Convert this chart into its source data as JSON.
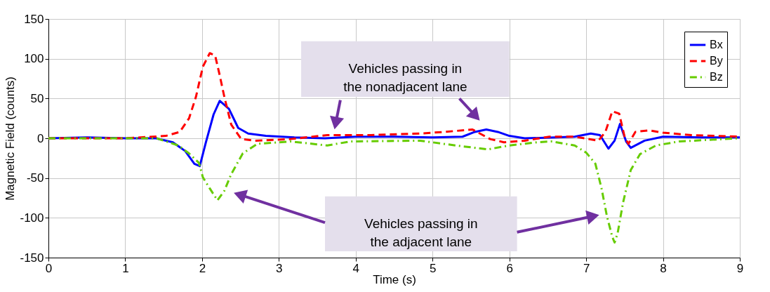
{
  "chart_data": {
    "type": "line",
    "xlabel": "Time (s)",
    "ylabel": "Magnetic Field (counts)",
    "xlim": [
      0,
      9
    ],
    "xticks": [
      0,
      1,
      2,
      3,
      4,
      5,
      6,
      7,
      8,
      9
    ],
    "ylim": [
      -150,
      150
    ],
    "yticks": [
      -150,
      -100,
      -50,
      0,
      50,
      100,
      150
    ],
    "grid": true,
    "legend": "top right",
    "marker": "none",
    "annotations": [
      "Vehicles passing in\nthe nonadjacent lane",
      "Vehicles passing in\nthe adjacent lane"
    ],
    "series": [
      {
        "name": "Bx",
        "color": "#0000ff",
        "line_style": "solid",
        "x": [
          0,
          0.5,
          1.0,
          1.4,
          1.62,
          1.78,
          1.9,
          1.97,
          2.05,
          2.15,
          2.23,
          2.35,
          2.47,
          2.6,
          2.83,
          3.2,
          3.6,
          4.0,
          4.5,
          5.0,
          5.39,
          5.55,
          5.7,
          5.85,
          6.0,
          6.2,
          6.6,
          6.85,
          7.06,
          7.18,
          7.29,
          7.37,
          7.44,
          7.52,
          7.58,
          7.76,
          8.0,
          8.5,
          9.0
        ],
        "values": [
          0,
          1,
          0,
          0,
          -5,
          -16,
          -32,
          -35,
          -5,
          30,
          47,
          37,
          13,
          6,
          3,
          1,
          0,
          2,
          2,
          1,
          2,
          8,
          11,
          8,
          3,
          0,
          1,
          2,
          6,
          4,
          -13,
          -3,
          18,
          -4,
          -12,
          -3,
          2,
          1,
          1
        ]
      },
      {
        "name": "By",
        "color": "#ff0000",
        "line_style": "dashed",
        "x": [
          0,
          0.5,
          1.0,
          1.53,
          1.71,
          1.83,
          1.92,
          2.01,
          2.1,
          2.17,
          2.23,
          2.29,
          2.38,
          2.51,
          2.69,
          3.15,
          3.63,
          4.2,
          4.84,
          5.15,
          5.52,
          5.75,
          5.93,
          6.2,
          6.52,
          6.85,
          7.16,
          7.25,
          7.34,
          7.43,
          7.5,
          7.55,
          7.64,
          7.82,
          8.0,
          8.37,
          9.0
        ],
        "values": [
          0,
          0,
          0,
          3,
          8,
          25,
          52,
          90,
          107,
          104,
          79,
          52,
          17,
          -1,
          -3,
          -1,
          4,
          4,
          6,
          8,
          11,
          -1,
          -5,
          -3,
          2,
          2,
          -3,
          8,
          34,
          31,
          2,
          -7,
          8,
          10,
          7,
          4,
          2
        ]
      },
      {
        "name": "Bz",
        "color": "#66cc00",
        "line_style": "dashdot",
        "x": [
          0,
          0.5,
          1.0,
          1.41,
          1.69,
          1.83,
          1.96,
          2.01,
          2.1,
          2.2,
          2.29,
          2.38,
          2.53,
          2.72,
          3.15,
          3.63,
          3.93,
          4.84,
          5.3,
          5.72,
          6.0,
          6.36,
          6.55,
          6.85,
          7.0,
          7.12,
          7.2,
          7.27,
          7.34,
          7.37,
          7.41,
          7.48,
          7.58,
          7.7,
          7.91,
          8.21,
          8.6,
          8.98
        ],
        "values": [
          0,
          0,
          0,
          0,
          -9,
          -19,
          -31,
          -49,
          -63,
          -78,
          -66,
          -45,
          -19,
          -7,
          -4,
          -9,
          -4,
          -3,
          -9,
          -14,
          -9,
          -5,
          -4,
          -9,
          -18,
          -32,
          -63,
          -98,
          -124,
          -131,
          -119,
          -81,
          -40,
          -20,
          -9,
          -4,
          -2,
          0
        ]
      }
    ]
  }
}
